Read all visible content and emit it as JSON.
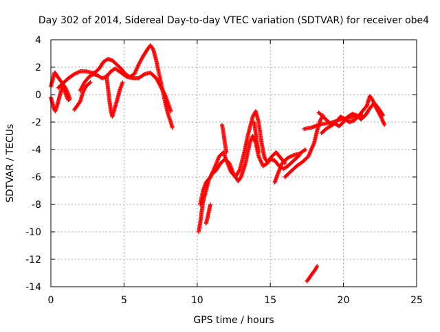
{
  "chart_data": {
    "type": "scatter",
    "title": "Day 302 of 2014, Sidereal Day-to-day VTEC variation (SDTVAR) for receiver obe4",
    "xlabel": "GPS time / hours",
    "ylabel": "SDTVAR / TECUs",
    "xlim": [
      0,
      25
    ],
    "ylim": [
      -14,
      4
    ],
    "xticks": [
      0,
      5,
      10,
      15,
      20,
      25
    ],
    "yticks": [
      -14,
      -12,
      -10,
      -8,
      -6,
      -4,
      -2,
      0,
      2,
      4
    ],
    "grid": true,
    "legend": "none",
    "series": [
      {
        "name": "SDTVAR",
        "color": "#ff0000",
        "marker": "plus",
        "segments": [
          [
            [
              0.0,
              -0.2
            ],
            [
              0.1,
              -0.6
            ],
            [
              0.2,
              -1.0
            ],
            [
              0.3,
              -1.2
            ],
            [
              0.4,
              -0.9
            ],
            [
              0.5,
              -0.5
            ],
            [
              0.6,
              -0.1
            ],
            [
              0.7,
              0.3
            ],
            [
              0.8,
              0.6
            ],
            [
              0.9,
              0.4
            ],
            [
              1.0,
              0.1
            ],
            [
              1.1,
              -0.2
            ],
            [
              1.2,
              -0.4
            ],
            [
              1.3,
              -0.3
            ],
            [
              1.2,
              0.0
            ],
            [
              1.0,
              0.5
            ],
            [
              0.8,
              0.8
            ],
            [
              0.6,
              1.1
            ],
            [
              0.4,
              1.4
            ],
            [
              0.3,
              1.6
            ],
            [
              0.25,
              1.6
            ],
            [
              0.2,
              1.4
            ],
            [
              0.1,
              1.0
            ],
            [
              0.0,
              0.6
            ]
          ],
          [
            [
              0.5,
              0.5
            ],
            [
              0.8,
              0.8
            ],
            [
              1.2,
              1.2
            ],
            [
              1.6,
              1.5
            ],
            [
              2.0,
              1.7
            ],
            [
              2.4,
              1.7
            ],
            [
              2.8,
              1.6
            ],
            [
              3.0,
              1.6
            ],
            [
              3.3,
              1.9
            ],
            [
              3.6,
              2.4
            ],
            [
              3.9,
              2.6
            ],
            [
              4.2,
              2.5
            ],
            [
              4.5,
              2.2
            ],
            [
              4.8,
              1.9
            ],
            [
              5.1,
              1.5
            ],
            [
              5.4,
              1.3
            ],
            [
              5.7,
              1.5
            ],
            [
              6.0,
              2.2
            ],
            [
              6.3,
              2.8
            ],
            [
              6.6,
              3.3
            ],
            [
              6.8,
              3.6
            ],
            [
              7.0,
              3.3
            ],
            [
              7.2,
              2.5
            ],
            [
              7.4,
              1.5
            ],
            [
              7.6,
              0.5
            ],
            [
              7.8,
              -0.5
            ],
            [
              8.0,
              -1.4
            ],
            [
              8.2,
              -2.0
            ],
            [
              8.3,
              -2.4
            ]
          ],
          [
            [
              2.0,
              0.3
            ],
            [
              2.3,
              0.9
            ],
            [
              2.6,
              1.3
            ],
            [
              2.9,
              1.5
            ],
            [
              3.2,
              1.4
            ],
            [
              3.5,
              1.2
            ],
            [
              3.8,
              1.3
            ],
            [
              4.1,
              1.7
            ],
            [
              4.4,
              1.9
            ],
            [
              4.8,
              1.6
            ],
            [
              5.2,
              1.3
            ],
            [
              5.6,
              1.2
            ],
            [
              6.0,
              1.2
            ],
            [
              6.4,
              1.5
            ],
            [
              6.8,
              1.6
            ],
            [
              7.2,
              1.2
            ],
            [
              7.5,
              0.6
            ],
            [
              7.8,
              0.0
            ],
            [
              8.0,
              -0.6
            ],
            [
              8.2,
              -1.2
            ]
          ],
          [
            [
              1.6,
              -1.1
            ],
            [
              1.8,
              -0.8
            ],
            [
              2.0,
              -0.5
            ],
            [
              2.2,
              0.2
            ],
            [
              2.4,
              0.6
            ],
            [
              2.7,
              0.9
            ]
          ],
          [
            [
              3.8,
              1.4
            ],
            [
              3.9,
              0.5
            ],
            [
              4.0,
              -0.4
            ],
            [
              4.1,
              -1.2
            ],
            [
              4.2,
              -1.6
            ],
            [
              4.3,
              -1.2
            ],
            [
              4.5,
              -0.5
            ],
            [
              4.7,
              0.3
            ],
            [
              4.9,
              0.9
            ]
          ],
          [
            [
              10.1,
              -10.0
            ],
            [
              10.2,
              -9.4
            ],
            [
              10.3,
              -8.6
            ],
            [
              10.4,
              -7.8
            ],
            [
              10.6,
              -7.0
            ],
            [
              10.8,
              -6.2
            ],
            [
              11.0,
              -5.8
            ],
            [
              11.3,
              -5.5
            ],
            [
              11.6,
              -5.0
            ],
            [
              11.9,
              -4.7
            ],
            [
              12.2,
              -5.0
            ],
            [
              12.5,
              -5.8
            ],
            [
              12.8,
              -6.3
            ],
            [
              13.0,
              -6.0
            ],
            [
              13.3,
              -5.0
            ],
            [
              13.6,
              -3.5
            ],
            [
              13.8,
              -3.0
            ],
            [
              14.0,
              -3.5
            ],
            [
              14.2,
              -4.5
            ],
            [
              14.5,
              -5.2
            ],
            [
              14.8,
              -5.0
            ],
            [
              15.0,
              -4.7
            ],
            [
              15.3,
              -4.8
            ],
            [
              15.6,
              -5.2
            ],
            [
              15.9,
              -5.4
            ],
            [
              16.2,
              -5.2
            ],
            [
              16.6,
              -4.8
            ],
            [
              17.0,
              -4.4
            ]
          ],
          [
            [
              10.2,
              -8.0
            ],
            [
              10.4,
              -7.0
            ],
            [
              10.6,
              -6.4
            ],
            [
              10.9,
              -6.0
            ],
            [
              11.2,
              -5.3
            ],
            [
              11.5,
              -4.5
            ],
            [
              11.8,
              -4.2
            ],
            [
              12.0,
              -4.8
            ],
            [
              12.3,
              -5.6
            ],
            [
              12.6,
              -6.0
            ],
            [
              12.9,
              -5.5
            ],
            [
              13.2,
              -4.3
            ],
            [
              13.5,
              -2.8
            ],
            [
              13.8,
              -1.6
            ],
            [
              14.0,
              -1.2
            ],
            [
              14.2,
              -2.0
            ],
            [
              14.4,
              -3.5
            ],
            [
              14.6,
              -4.6
            ],
            [
              14.8,
              -4.9
            ],
            [
              15.1,
              -4.5
            ],
            [
              15.4,
              -4.2
            ],
            [
              15.7,
              -4.6
            ],
            [
              16.0,
              -5.0
            ]
          ],
          [
            [
              10.6,
              -9.4
            ],
            [
              10.7,
              -9.0
            ],
            [
              10.8,
              -8.5
            ],
            [
              10.9,
              -8.0
            ]
          ],
          [
            [
              11.7,
              -2.2
            ],
            [
              11.8,
              -2.8
            ],
            [
              11.9,
              -3.6
            ],
            [
              12.0,
              -4.2
            ]
          ],
          [
            [
              13.9,
              -2.0
            ],
            [
              14.0,
              -2.8
            ],
            [
              14.1,
              -3.6
            ],
            [
              14.2,
              -4.2
            ]
          ],
          [
            [
              15.3,
              -6.4
            ],
            [
              15.5,
              -5.8
            ],
            [
              15.8,
              -5.0
            ],
            [
              16.2,
              -4.6
            ],
            [
              16.6,
              -4.4
            ],
            [
              17.0,
              -4.3
            ],
            [
              17.4,
              -4.0
            ]
          ],
          [
            [
              16.0,
              -6.0
            ],
            [
              16.4,
              -5.6
            ],
            [
              16.8,
              -5.2
            ],
            [
              17.2,
              -4.9
            ],
            [
              17.6,
              -4.5
            ],
            [
              18.0,
              -3.5
            ],
            [
              18.2,
              -2.6
            ],
            [
              18.4,
              -1.9
            ],
            [
              18.6,
              -1.5
            ]
          ],
          [
            [
              17.3,
              -2.5
            ],
            [
              17.8,
              -2.4
            ],
            [
              18.3,
              -2.2
            ],
            [
              18.8,
              -2.1
            ],
            [
              19.3,
              -2.0
            ],
            [
              19.8,
              -1.8
            ],
            [
              20.3,
              -1.7
            ],
            [
              20.8,
              -1.6
            ],
            [
              21.3,
              -1.5
            ]
          ],
          [
            [
              18.3,
              -1.3
            ],
            [
              18.6,
              -1.6
            ],
            [
              18.9,
              -1.9
            ],
            [
              19.2,
              -2.2
            ],
            [
              19.5,
              -2.0
            ],
            [
              19.8,
              -1.6
            ],
            [
              20.1,
              -1.8
            ],
            [
              20.4,
              -2.0
            ],
            [
              20.7,
              -1.9
            ],
            [
              21.0,
              -1.6
            ],
            [
              21.3,
              -1.2
            ],
            [
              21.6,
              -0.8
            ],
            [
              21.8,
              -0.1
            ],
            [
              22.0,
              -0.4
            ],
            [
              22.2,
              -0.9
            ],
            [
              22.4,
              -1.3
            ],
            [
              22.6,
              -1.7
            ],
            [
              22.8,
              -2.2
            ]
          ],
          [
            [
              18.5,
              -2.8
            ],
            [
              18.8,
              -2.5
            ],
            [
              19.1,
              -2.3
            ],
            [
              19.4,
              -2.1
            ],
            [
              19.7,
              -2.3
            ],
            [
              20.0,
              -2.0
            ],
            [
              20.3,
              -1.6
            ],
            [
              20.6,
              -1.4
            ],
            [
              20.9,
              -1.5
            ],
            [
              21.2,
              -1.8
            ],
            [
              21.5,
              -1.5
            ],
            [
              21.8,
              -1.0
            ],
            [
              22.1,
              -0.6
            ],
            [
              22.4,
              -1.0
            ],
            [
              22.7,
              -1.5
            ]
          ],
          [
            [
              17.5,
              -13.6
            ],
            [
              17.7,
              -13.3
            ],
            [
              17.9,
              -13.0
            ],
            [
              18.1,
              -12.7
            ],
            [
              18.2,
              -12.5
            ]
          ]
        ]
      }
    ]
  }
}
